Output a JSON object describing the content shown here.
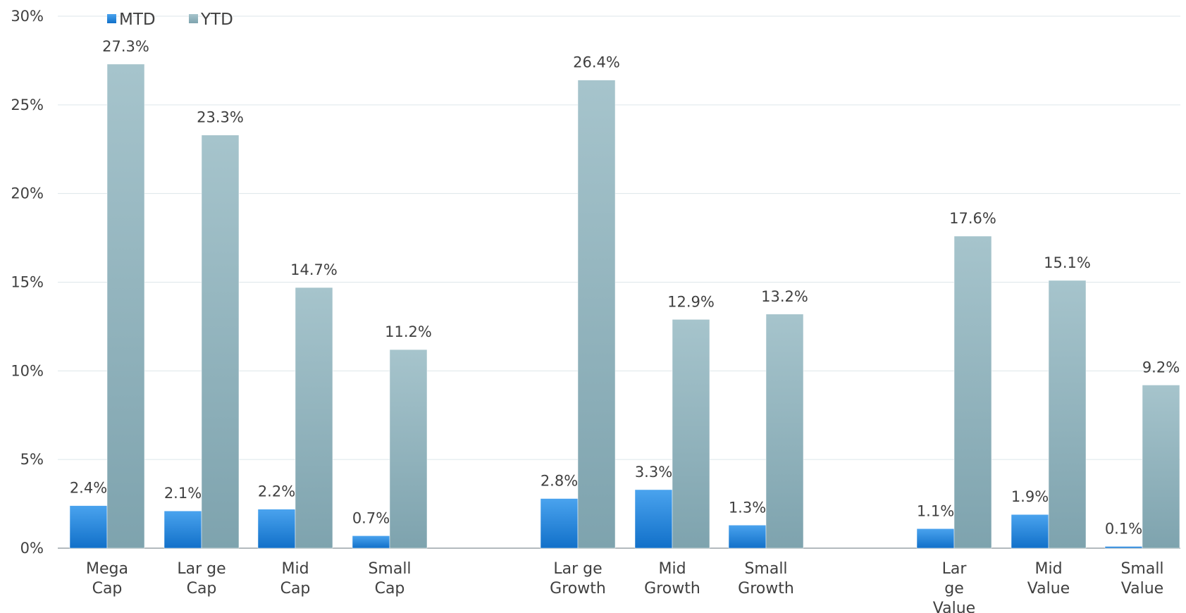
{
  "chart_data": {
    "type": "bar",
    "title": "",
    "xlabel": "",
    "ylabel": "",
    "ylim": [
      0,
      30
    ],
    "y_ticks": [
      "0%",
      "5%",
      "10%",
      "15%",
      "20%",
      "25%",
      "30%"
    ],
    "grid": true,
    "legend_position": "top-left",
    "categories": [
      {
        "lines": [
          "Mega",
          "Cap"
        ]
      },
      {
        "lines": [
          "Lar ge",
          "Cap"
        ]
      },
      {
        "lines": [
          "Mid",
          "Cap"
        ]
      },
      {
        "lines": [
          "Small",
          "Cap"
        ]
      },
      {
        "lines": [
          "Lar ge",
          "Growth"
        ]
      },
      {
        "lines": [
          "Mid",
          "Growth"
        ]
      },
      {
        "lines": [
          "Small",
          "Growth"
        ]
      },
      {
        "lines": [
          "Lar",
          "ge",
          "Value"
        ]
      },
      {
        "lines": [
          "Mid",
          "Value"
        ]
      },
      {
        "lines": [
          "Small",
          "Value"
        ]
      }
    ],
    "series": [
      {
        "name": "MTD",
        "color": "#1f7fd6",
        "values": [
          2.4,
          2.1,
          2.2,
          0.7,
          2.8,
          3.3,
          1.3,
          1.1,
          1.9,
          0.1
        ],
        "labels": [
          "2.4%",
          "2.1%",
          "2.2%",
          "0.7%",
          "2.8%",
          "3.3%",
          "1.3%",
          "1.1%",
          "1.9%",
          "0.1%"
        ]
      },
      {
        "name": "YTD",
        "color": "#8fb3bf",
        "values": [
          27.3,
          23.3,
          14.7,
          11.2,
          26.4,
          12.9,
          13.2,
          17.6,
          15.1,
          9.2
        ],
        "labels": [
          "27.3%",
          "23.3%",
          "14.7%",
          "11.2%",
          "26.4%",
          "12.9%",
          "13.2%",
          "17.6%",
          "15.1%",
          "9.2%"
        ]
      }
    ]
  }
}
